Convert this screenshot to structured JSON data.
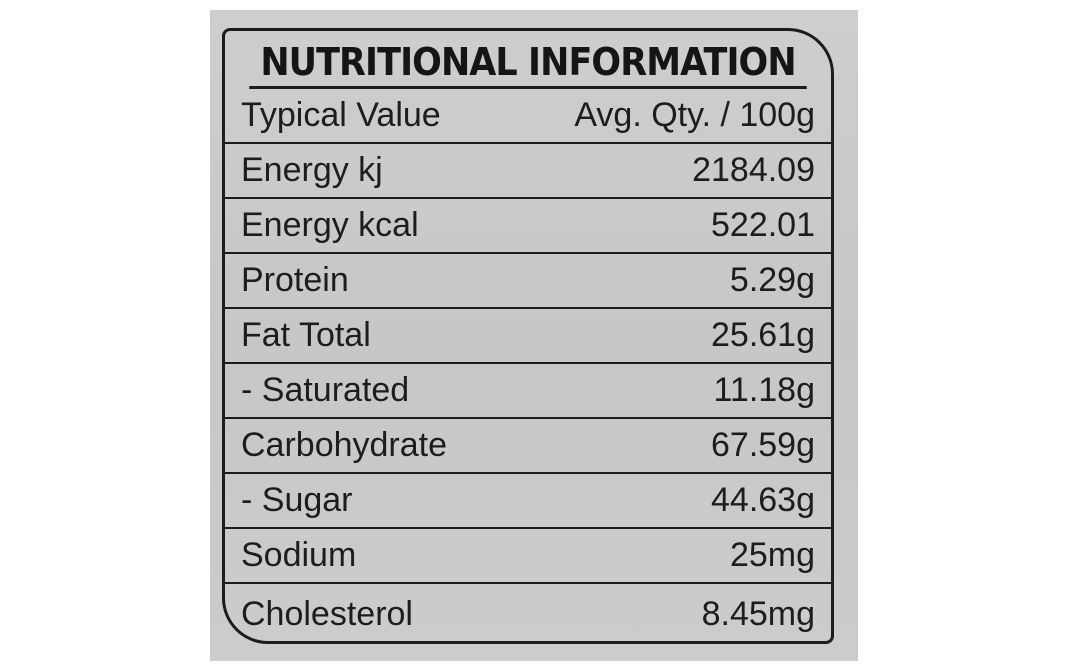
{
  "title": "NUTRITIONAL INFORMATION",
  "table": {
    "header": [
      "Typical Value",
      "Avg. Qty. / 100g"
    ],
    "rows": [
      [
        "Energy kj",
        "2184.09"
      ],
      [
        "Energy kcal",
        "522.01"
      ],
      [
        "Protein",
        "5.29g"
      ],
      [
        "Fat Total",
        "25.61g"
      ],
      [
        "- Saturated",
        "11.18g"
      ],
      [
        "Carbohydrate",
        "67.59g"
      ],
      [
        "- Sugar",
        "44.63g"
      ],
      [
        "Sodium",
        "25mg"
      ],
      [
        "Cholesterol",
        "8.45mg"
      ]
    ]
  }
}
